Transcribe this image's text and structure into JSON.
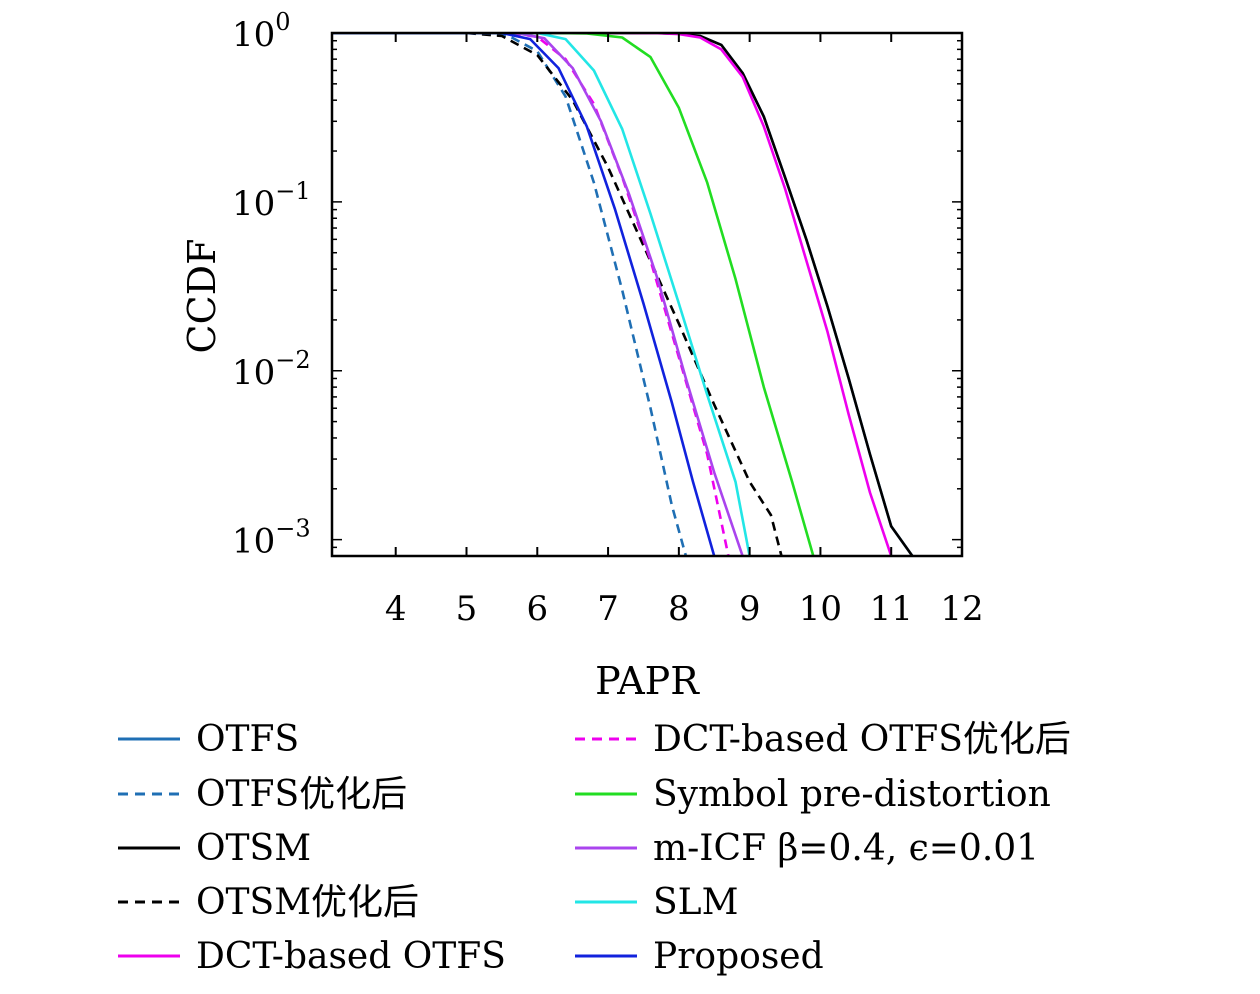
{
  "chart_data": {
    "type": "line",
    "title": "",
    "xlabel": "PAPR",
    "ylabel": "CCDF",
    "x_scale": "linear",
    "y_scale": "log",
    "xlim": [
      3.1,
      12.0
    ],
    "ylim": [
      0.0008,
      1
    ],
    "xticks": [
      4,
      5,
      6,
      7,
      8,
      9,
      10,
      11,
      12
    ],
    "xtick_labels": [
      "4",
      "5",
      "6",
      "7",
      "8",
      "9",
      "10",
      "11",
      "12"
    ],
    "yticks": [
      1,
      0.1,
      0.01,
      0.001
    ],
    "ytick_labels": [
      {
        "base": "10",
        "exp": "0"
      },
      {
        "base": "10",
        "exp": "−1"
      },
      {
        "base": "10",
        "exp": "−2"
      },
      {
        "base": "10",
        "exp": "−3"
      }
    ],
    "grid": false,
    "legend_placement": "below plot, two columns",
    "series": [
      {
        "name": "OTFS",
        "color": "#1f6fb4",
        "dash": "solid",
        "x": [
          3.1,
          7.2,
          7.7,
          8.0,
          8.3,
          8.6,
          8.9,
          9.2,
          9.5,
          9.8,
          10.1,
          10.4,
          10.7,
          11.0,
          11.3
        ],
        "y": [
          1,
          1,
          0.998,
          0.99,
          0.96,
          0.85,
          0.58,
          0.32,
          0.14,
          0.06,
          0.024,
          0.009,
          0.0032,
          0.0012,
          0.0008
        ]
      },
      {
        "name": "OTFS优化后",
        "color": "#1f6fb4",
        "dash": "dashed",
        "x": [
          3.1,
          5.2,
          5.6,
          6.0,
          6.4,
          6.8,
          7.2,
          7.6,
          7.9,
          8.1
        ],
        "y": [
          1,
          1,
          0.96,
          0.78,
          0.42,
          0.13,
          0.03,
          0.006,
          0.0016,
          0.0008
        ]
      },
      {
        "name": "OTSM",
        "color": "#000000",
        "dash": "solid",
        "x": [
          3.1,
          7.2,
          7.7,
          8.0,
          8.3,
          8.6,
          8.9,
          9.2,
          9.5,
          9.8,
          10.1,
          10.4,
          10.7,
          11.0,
          11.3
        ],
        "y": [
          1,
          1,
          0.998,
          0.99,
          0.96,
          0.85,
          0.58,
          0.32,
          0.14,
          0.06,
          0.024,
          0.009,
          0.0032,
          0.0012,
          0.0008
        ]
      },
      {
        "name": "OTSM优化后",
        "color": "#000000",
        "dash": "dashed",
        "x": [
          3.1,
          5.0,
          5.5,
          6.0,
          6.5,
          7.0,
          7.5,
          8.0,
          8.5,
          9.0,
          9.3,
          9.45
        ],
        "y": [
          1,
          1,
          0.96,
          0.74,
          0.4,
          0.16,
          0.055,
          0.019,
          0.0063,
          0.0022,
          0.0014,
          0.0008
        ]
      },
      {
        "name": "DCT-based OTFS",
        "color": "#ee00ee",
        "dash": "solid",
        "x": [
          3.1,
          7.2,
          7.7,
          8.0,
          8.3,
          8.6,
          8.9,
          9.2,
          9.5,
          9.8,
          10.1,
          10.4,
          10.7,
          11.0
        ],
        "y": [
          1,
          1,
          0.997,
          0.985,
          0.94,
          0.8,
          0.55,
          0.28,
          0.12,
          0.045,
          0.017,
          0.0055,
          0.0019,
          0.0008
        ]
      },
      {
        "name": "DCT-based OTFS优化后",
        "color": "#ee00ee",
        "dash": "dashed",
        "x": [
          3.1,
          5.6,
          6.0,
          6.4,
          6.8,
          7.2,
          7.6,
          8.0,
          8.4,
          8.7
        ],
        "y": [
          1,
          1,
          0.95,
          0.7,
          0.38,
          0.14,
          0.045,
          0.012,
          0.0032,
          0.0008
        ]
      },
      {
        "name": "Symbol pre-distortion",
        "color": "#22dd22",
        "dash": "solid",
        "x": [
          3.1,
          6.2,
          6.7,
          7.2,
          7.6,
          8.0,
          8.4,
          8.8,
          9.2,
          9.6,
          9.9
        ],
        "y": [
          1,
          1,
          0.995,
          0.94,
          0.72,
          0.36,
          0.13,
          0.035,
          0.008,
          0.0022,
          0.0008
        ]
      },
      {
        "name": "m-ICF β=0.4, ϵ=0.01",
        "color": "#aa44ee",
        "dash": "solid",
        "x": [
          3.1,
          5.7,
          6.1,
          6.5,
          6.9,
          7.3,
          7.7,
          8.1,
          8.5,
          8.9
        ],
        "y": [
          1,
          1,
          0.93,
          0.62,
          0.3,
          0.11,
          0.035,
          0.009,
          0.0025,
          0.0008
        ]
      },
      {
        "name": "SLM",
        "color": "#22e6e6",
        "dash": "solid",
        "x": [
          3.1,
          6.0,
          6.4,
          6.8,
          7.2,
          7.6,
          8.0,
          8.4,
          8.8,
          9.0
        ],
        "y": [
          1,
          1,
          0.92,
          0.6,
          0.27,
          0.085,
          0.025,
          0.0072,
          0.0022,
          0.0008
        ]
      },
      {
        "name": "Proposed",
        "color": "#1122dd",
        "dash": "solid",
        "x": [
          3.1,
          5.5,
          5.9,
          6.3,
          6.7,
          7.1,
          7.5,
          7.9,
          8.2,
          8.5
        ],
        "y": [
          1,
          1,
          0.92,
          0.62,
          0.28,
          0.09,
          0.025,
          0.0065,
          0.0022,
          0.0008
        ]
      }
    ]
  }
}
